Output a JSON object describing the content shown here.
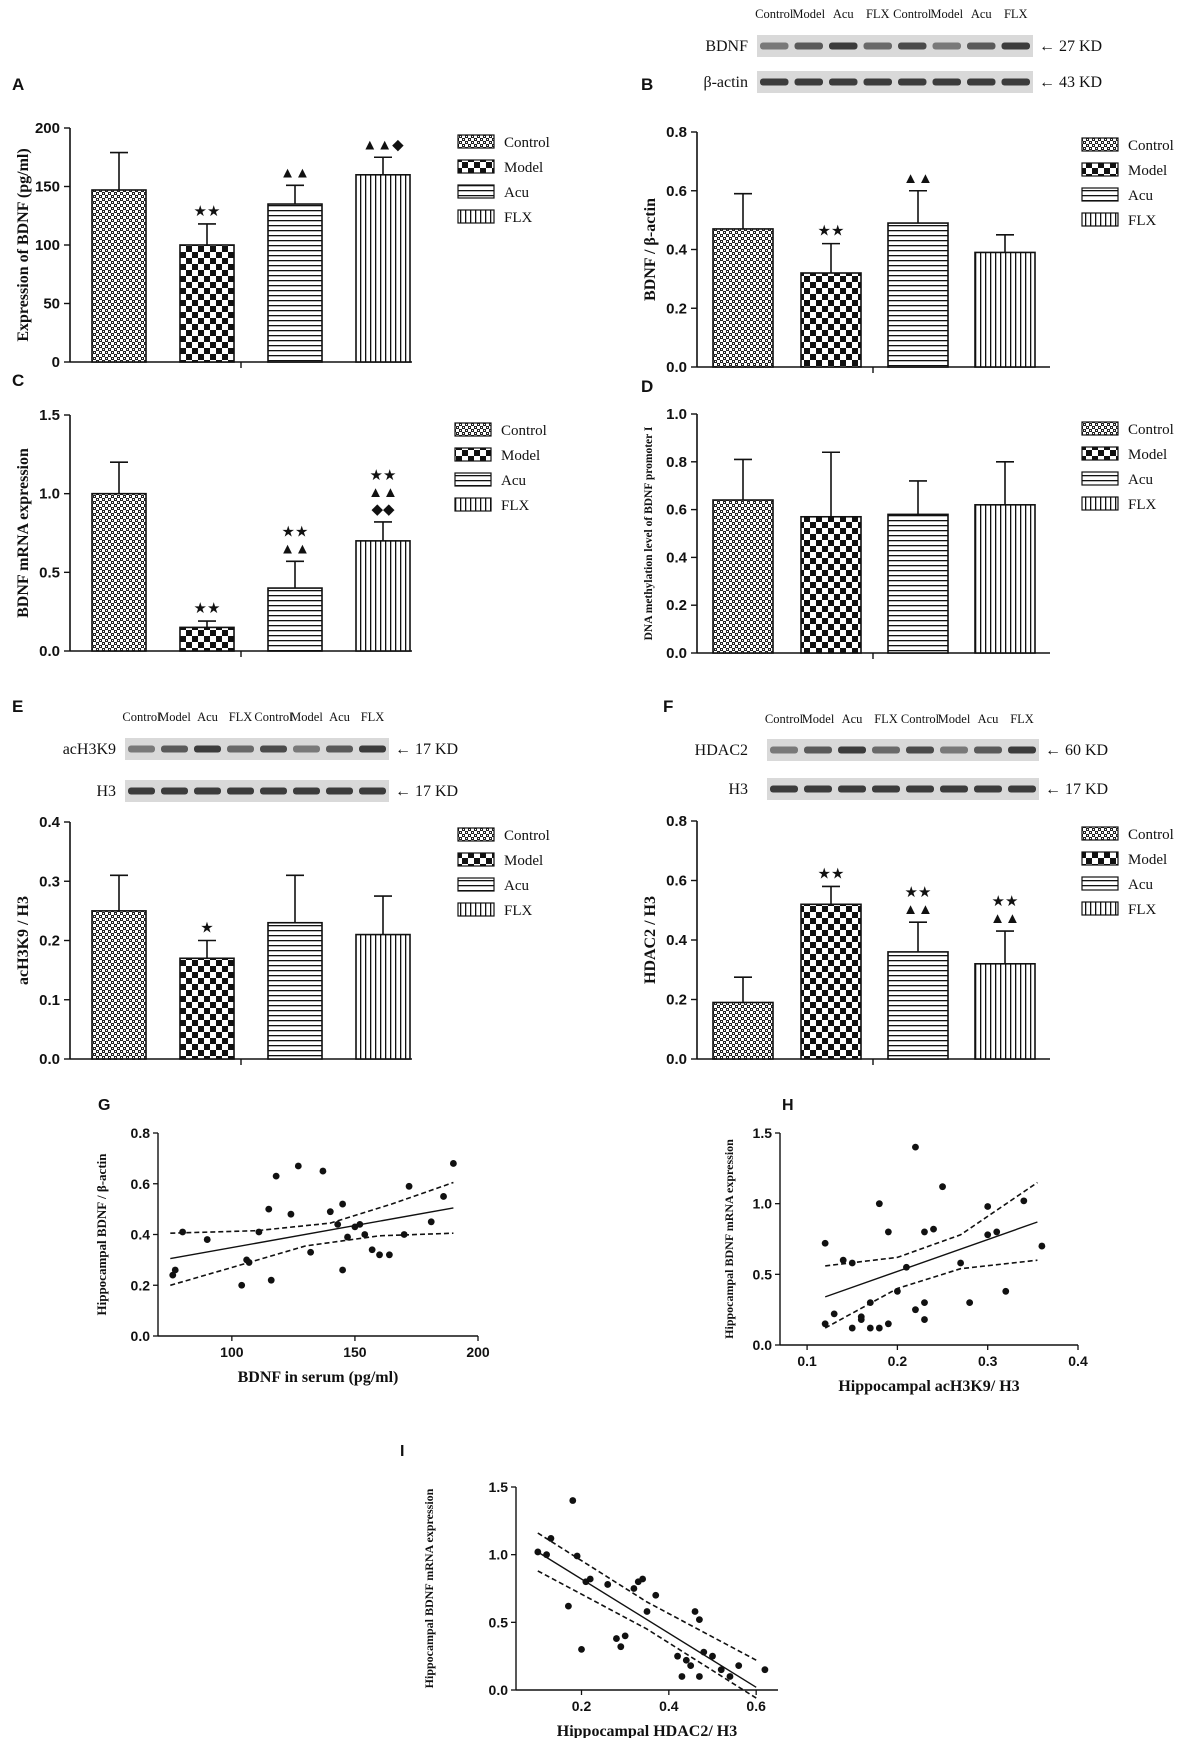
{
  "colors": {
    "ink": "#111111",
    "blot_band": "#2a2a2a",
    "blot_bg": "#d9d9d9"
  },
  "legend_labels": [
    "Control",
    "Model",
    "Acu",
    "FLX"
  ],
  "blot_lanes": [
    "Control",
    "Model",
    "Acu",
    "FLX",
    "Control",
    "Model",
    "Acu",
    "FLX"
  ],
  "blots": {
    "B": {
      "rows": [
        {
          "label": "BDNF",
          "size": "27 KD"
        },
        {
          "label": "β-actin",
          "size": "43 KD"
        }
      ]
    },
    "E": {
      "rows": [
        {
          "label": "acH3K9",
          "size": "17 KD"
        },
        {
          "label": "H3",
          "size": "17 KD"
        }
      ]
    },
    "F": {
      "rows": [
        {
          "label": "HDAC2",
          "size": "60 KD"
        },
        {
          "label": "H3",
          "size": "17 KD"
        }
      ]
    }
  },
  "chart_data": [
    {
      "panel": "A",
      "type": "bar",
      "categories": [
        "Control",
        "Model",
        "Acu",
        "FLX"
      ],
      "values": [
        147,
        100,
        135,
        160
      ],
      "errors": [
        32,
        18,
        16,
        15
      ],
      "ylabel": "Expression of BDNF (pg/ml)",
      "ylim": [
        0,
        200
      ],
      "yticks": [
        0,
        50,
        100,
        150,
        200
      ],
      "annotations": [
        "",
        "★★",
        "▲▲",
        "▲▲◆"
      ]
    },
    {
      "panel": "B",
      "type": "bar",
      "categories": [
        "Control",
        "Model",
        "Acu",
        "FLX"
      ],
      "values": [
        0.47,
        0.32,
        0.49,
        0.39
      ],
      "errors": [
        0.12,
        0.1,
        0.11,
        0.06
      ],
      "ylabel": "BDNF / β-actin",
      "ylim": [
        0,
        0.8
      ],
      "yticks": [
        0.0,
        0.2,
        0.4,
        0.6,
        0.8
      ],
      "annotations": [
        "",
        "★★",
        "▲▲",
        ""
      ]
    },
    {
      "panel": "C",
      "type": "bar",
      "categories": [
        "Control",
        "Model",
        "Acu",
        "FLX"
      ],
      "values": [
        1.0,
        0.15,
        0.4,
        0.7
      ],
      "errors": [
        0.2,
        0.04,
        0.17,
        0.12
      ],
      "ylabel": "BDNF mRNA expression",
      "ylim": [
        0,
        1.5
      ],
      "yticks": [
        0.0,
        0.5,
        1.0,
        1.5
      ],
      "annotations": [
        "",
        "★★",
        "★★|▲▲",
        "★★|▲▲|◆◆"
      ]
    },
    {
      "panel": "D",
      "type": "bar",
      "categories": [
        "Control",
        "Model",
        "Acu",
        "FLX"
      ],
      "values": [
        0.64,
        0.57,
        0.58,
        0.62
      ],
      "errors": [
        0.17,
        0.27,
        0.14,
        0.18
      ],
      "ylabel": "DNA methylation level of BDNF promoter I",
      "ylim": [
        0,
        1.0
      ],
      "yticks": [
        0.0,
        0.2,
        0.4,
        0.6,
        0.8,
        1.0
      ],
      "annotations": [
        "",
        "",
        "",
        ""
      ]
    },
    {
      "panel": "E",
      "type": "bar",
      "categories": [
        "Control",
        "Model",
        "Acu",
        "FLX"
      ],
      "values": [
        0.25,
        0.17,
        0.23,
        0.21
      ],
      "errors": [
        0.06,
        0.03,
        0.08,
        0.065
      ],
      "ylabel": "acH3K9 / H3",
      "ylim": [
        0,
        0.4
      ],
      "yticks": [
        0.0,
        0.1,
        0.2,
        0.3,
        0.4
      ],
      "annotations": [
        "",
        "★",
        "",
        ""
      ]
    },
    {
      "panel": "F",
      "type": "bar",
      "categories": [
        "Control",
        "Model",
        "Acu",
        "FLX"
      ],
      "values": [
        0.19,
        0.52,
        0.36,
        0.32
      ],
      "errors": [
        0.085,
        0.06,
        0.1,
        0.11
      ],
      "ylabel": "HDAC2 / H3",
      "ylim": [
        0,
        0.8
      ],
      "yticks": [
        0.0,
        0.2,
        0.4,
        0.6,
        0.8
      ],
      "annotations": [
        "",
        "★★",
        "★★|▲▲",
        "★★|▲▲"
      ]
    },
    {
      "panel": "G",
      "type": "scatter",
      "xlabel": "BDNF in serum (pg/ml)",
      "ylabel": "Hippocampal BDNF / β-actin",
      "xlim": [
        70,
        200
      ],
      "ylim": [
        0,
        0.8
      ],
      "xticks": [
        100,
        150,
        200
      ],
      "yticks": [
        0.0,
        0.2,
        0.4,
        0.6,
        0.8
      ],
      "points": [
        [
          76,
          0.24
        ],
        [
          77,
          0.26
        ],
        [
          80,
          0.41
        ],
        [
          90,
          0.38
        ],
        [
          104,
          0.2
        ],
        [
          106,
          0.3
        ],
        [
          107,
          0.29
        ],
        [
          111,
          0.41
        ],
        [
          115,
          0.5
        ],
        [
          116,
          0.22
        ],
        [
          118,
          0.63
        ],
        [
          124,
          0.48
        ],
        [
          127,
          0.67
        ],
        [
          132,
          0.33
        ],
        [
          137,
          0.65
        ],
        [
          140,
          0.49
        ],
        [
          143,
          0.44
        ],
        [
          145,
          0.26
        ],
        [
          145,
          0.52
        ],
        [
          147,
          0.39
        ],
        [
          150,
          0.43
        ],
        [
          152,
          0.44
        ],
        [
          154,
          0.4
        ],
        [
          157,
          0.34
        ],
        [
          160,
          0.32
        ],
        [
          164,
          0.32
        ],
        [
          170,
          0.4
        ],
        [
          172,
          0.59
        ],
        [
          181,
          0.45
        ],
        [
          186,
          0.55
        ],
        [
          190,
          0.68
        ]
      ],
      "fit": [
        [
          75,
          0.305
        ],
        [
          190,
          0.505
        ]
      ],
      "ci_upper": [
        [
          75,
          0.405
        ],
        [
          110,
          0.415
        ],
        [
          140,
          0.445
        ],
        [
          165,
          0.52
        ],
        [
          190,
          0.605
        ]
      ],
      "ci_lower": [
        [
          75,
          0.2
        ],
        [
          100,
          0.27
        ],
        [
          130,
          0.355
        ],
        [
          160,
          0.395
        ],
        [
          190,
          0.405
        ]
      ]
    },
    {
      "panel": "H",
      "type": "scatter",
      "xlabel": "Hippocampal acH3K9/ H3",
      "ylabel": "Hippocampal BDNF mRNA expression",
      "xlim": [
        0.07,
        0.4
      ],
      "ylim": [
        0,
        1.5
      ],
      "xticks": [
        0.1,
        0.2,
        0.3,
        0.4
      ],
      "yticks": [
        0.0,
        0.5,
        1.0,
        1.5
      ],
      "points": [
        [
          0.12,
          0.15
        ],
        [
          0.12,
          0.72
        ],
        [
          0.13,
          0.22
        ],
        [
          0.14,
          0.6
        ],
        [
          0.15,
          0.12
        ],
        [
          0.15,
          0.58
        ],
        [
          0.16,
          0.18
        ],
        [
          0.16,
          0.2
        ],
        [
          0.17,
          0.12
        ],
        [
          0.17,
          0.3
        ],
        [
          0.18,
          1.0
        ],
        [
          0.18,
          0.12
        ],
        [
          0.19,
          0.15
        ],
        [
          0.19,
          0.8
        ],
        [
          0.2,
          0.38
        ],
        [
          0.21,
          0.55
        ],
        [
          0.22,
          1.4
        ],
        [
          0.22,
          0.25
        ],
        [
          0.23,
          0.3
        ],
        [
          0.23,
          0.8
        ],
        [
          0.24,
          0.82
        ],
        [
          0.25,
          1.12
        ],
        [
          0.27,
          0.58
        ],
        [
          0.28,
          0.3
        ],
        [
          0.3,
          0.78
        ],
        [
          0.3,
          0.98
        ],
        [
          0.31,
          0.8
        ],
        [
          0.32,
          0.38
        ],
        [
          0.34,
          1.02
        ],
        [
          0.36,
          0.7
        ],
        [
          0.23,
          0.18
        ]
      ],
      "fit": [
        [
          0.12,
          0.34
        ],
        [
          0.355,
          0.87
        ]
      ],
      "ci_upper": [
        [
          0.12,
          0.56
        ],
        [
          0.2,
          0.62
        ],
        [
          0.27,
          0.78
        ],
        [
          0.355,
          1.15
        ]
      ],
      "ci_lower": [
        [
          0.12,
          0.12
        ],
        [
          0.2,
          0.4
        ],
        [
          0.27,
          0.54
        ],
        [
          0.355,
          0.6
        ]
      ]
    },
    {
      "panel": "I",
      "type": "scatter",
      "xlabel": "Hippocampal HDAC2/ H3",
      "ylabel": "Hippocampal BDNF mRNA expression",
      "xlim": [
        0.05,
        0.65
      ],
      "ylim": [
        0,
        1.5
      ],
      "xticks": [
        0.2,
        0.4,
        0.6
      ],
      "yticks": [
        0.0,
        0.5,
        1.0,
        1.5
      ],
      "points": [
        [
          0.1,
          1.02
        ],
        [
          0.12,
          1.0
        ],
        [
          0.13,
          1.12
        ],
        [
          0.17,
          0.62
        ],
        [
          0.18,
          1.4
        ],
        [
          0.19,
          0.99
        ],
        [
          0.2,
          0.3
        ],
        [
          0.21,
          0.8
        ],
        [
          0.22,
          0.82
        ],
        [
          0.26,
          0.78
        ],
        [
          0.28,
          0.38
        ],
        [
          0.29,
          0.32
        ],
        [
          0.3,
          0.4
        ],
        [
          0.32,
          0.75
        ],
        [
          0.33,
          0.8
        ],
        [
          0.34,
          0.82
        ],
        [
          0.35,
          0.58
        ],
        [
          0.37,
          0.7
        ],
        [
          0.42,
          0.25
        ],
        [
          0.43,
          0.1
        ],
        [
          0.44,
          0.22
        ],
        [
          0.45,
          0.18
        ],
        [
          0.46,
          0.58
        ],
        [
          0.47,
          0.52
        ],
        [
          0.48,
          0.28
        ],
        [
          0.5,
          0.25
        ],
        [
          0.52,
          0.15
        ],
        [
          0.54,
          0.1
        ],
        [
          0.56,
          0.18
        ],
        [
          0.62,
          0.15
        ],
        [
          0.47,
          0.1
        ]
      ],
      "fit": [
        [
          0.1,
          1.02
        ],
        [
          0.6,
          0.02
        ]
      ],
      "ci_upper": [
        [
          0.1,
          1.16
        ],
        [
          0.35,
          0.65
        ],
        [
          0.6,
          0.22
        ]
      ],
      "ci_lower": [
        [
          0.1,
          0.88
        ],
        [
          0.35,
          0.45
        ],
        [
          0.6,
          -0.06
        ]
      ]
    }
  ]
}
